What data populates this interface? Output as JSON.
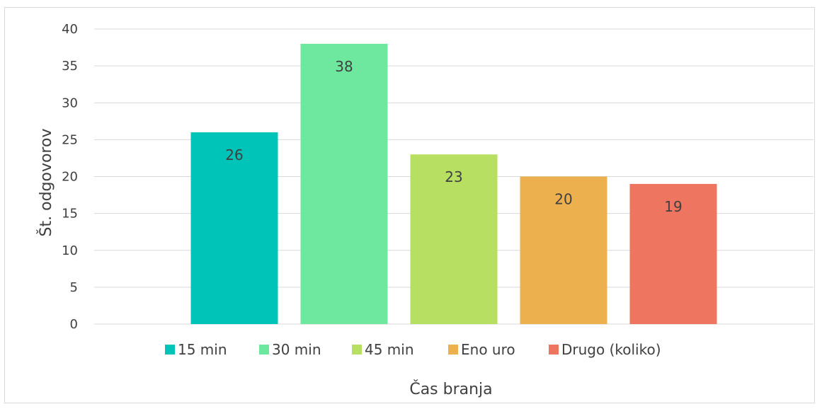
{
  "chart_data": {
    "type": "bar",
    "title": "",
    "xlabel": "Čas branja",
    "ylabel": "Št. odgovorov",
    "ylim": [
      0,
      40
    ],
    "y_ticks": [
      0,
      5,
      10,
      15,
      20,
      25,
      30,
      35,
      40
    ],
    "grid": true,
    "legend_position": "bottom",
    "data_labels": true,
    "series": [
      {
        "name": "15 min",
        "values": [
          26
        ],
        "color": "#00C4B8"
      },
      {
        "name": "30 min",
        "values": [
          38
        ],
        "color": "#6EE89F"
      },
      {
        "name": "45 min",
        "values": [
          23
        ],
        "color": "#B7E062"
      },
      {
        "name": "Eno uro",
        "values": [
          20
        ],
        "color": "#EDB04F"
      },
      {
        "name": "Drugo  (koliko)",
        "values": [
          19
        ],
        "color": "#EE7560"
      }
    ]
  }
}
